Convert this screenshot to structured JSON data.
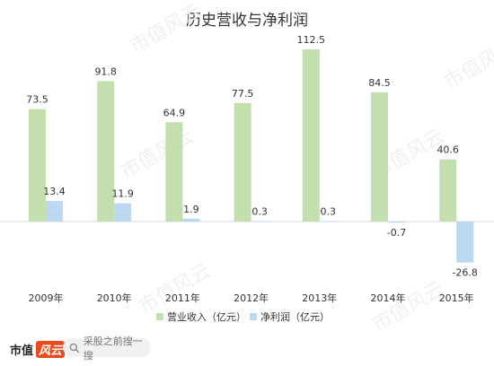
{
  "chart_data": {
    "type": "bar",
    "title": "历史营收与净利润",
    "categories": [
      "2009年",
      "2010年",
      "2011年",
      "2012年",
      "2013年",
      "2014年",
      "2015年"
    ],
    "series": [
      {
        "name": "营业收入（亿元）",
        "values": [
          73.5,
          91.8,
          64.9,
          77.5,
          112.5,
          84.5,
          40.6
        ],
        "color": "#c3dfad"
      },
      {
        "name": "净利润（亿元）",
        "values": [
          13.4,
          11.9,
          1.9,
          0.3,
          0.3,
          -0.7,
          -26.8
        ],
        "color": "#bcd7f0"
      }
    ],
    "data_labels": [
      [
        "73.5",
        "91.8",
        "64.9",
        "77.5",
        "112.5",
        "84.5",
        "40.6"
      ],
      [
        "13.4",
        "11.9",
        "1.9",
        "0.3",
        "0.3",
        "-0.7",
        "-26.8"
      ]
    ],
    "ylim": [
      -30,
      115
    ],
    "grid": false,
    "legend": "bottom",
    "watermark": "市值风云"
  },
  "footer": {
    "brand": "市值",
    "brand_mark": "风云",
    "search_placeholder": "采股之前搜一搜"
  }
}
